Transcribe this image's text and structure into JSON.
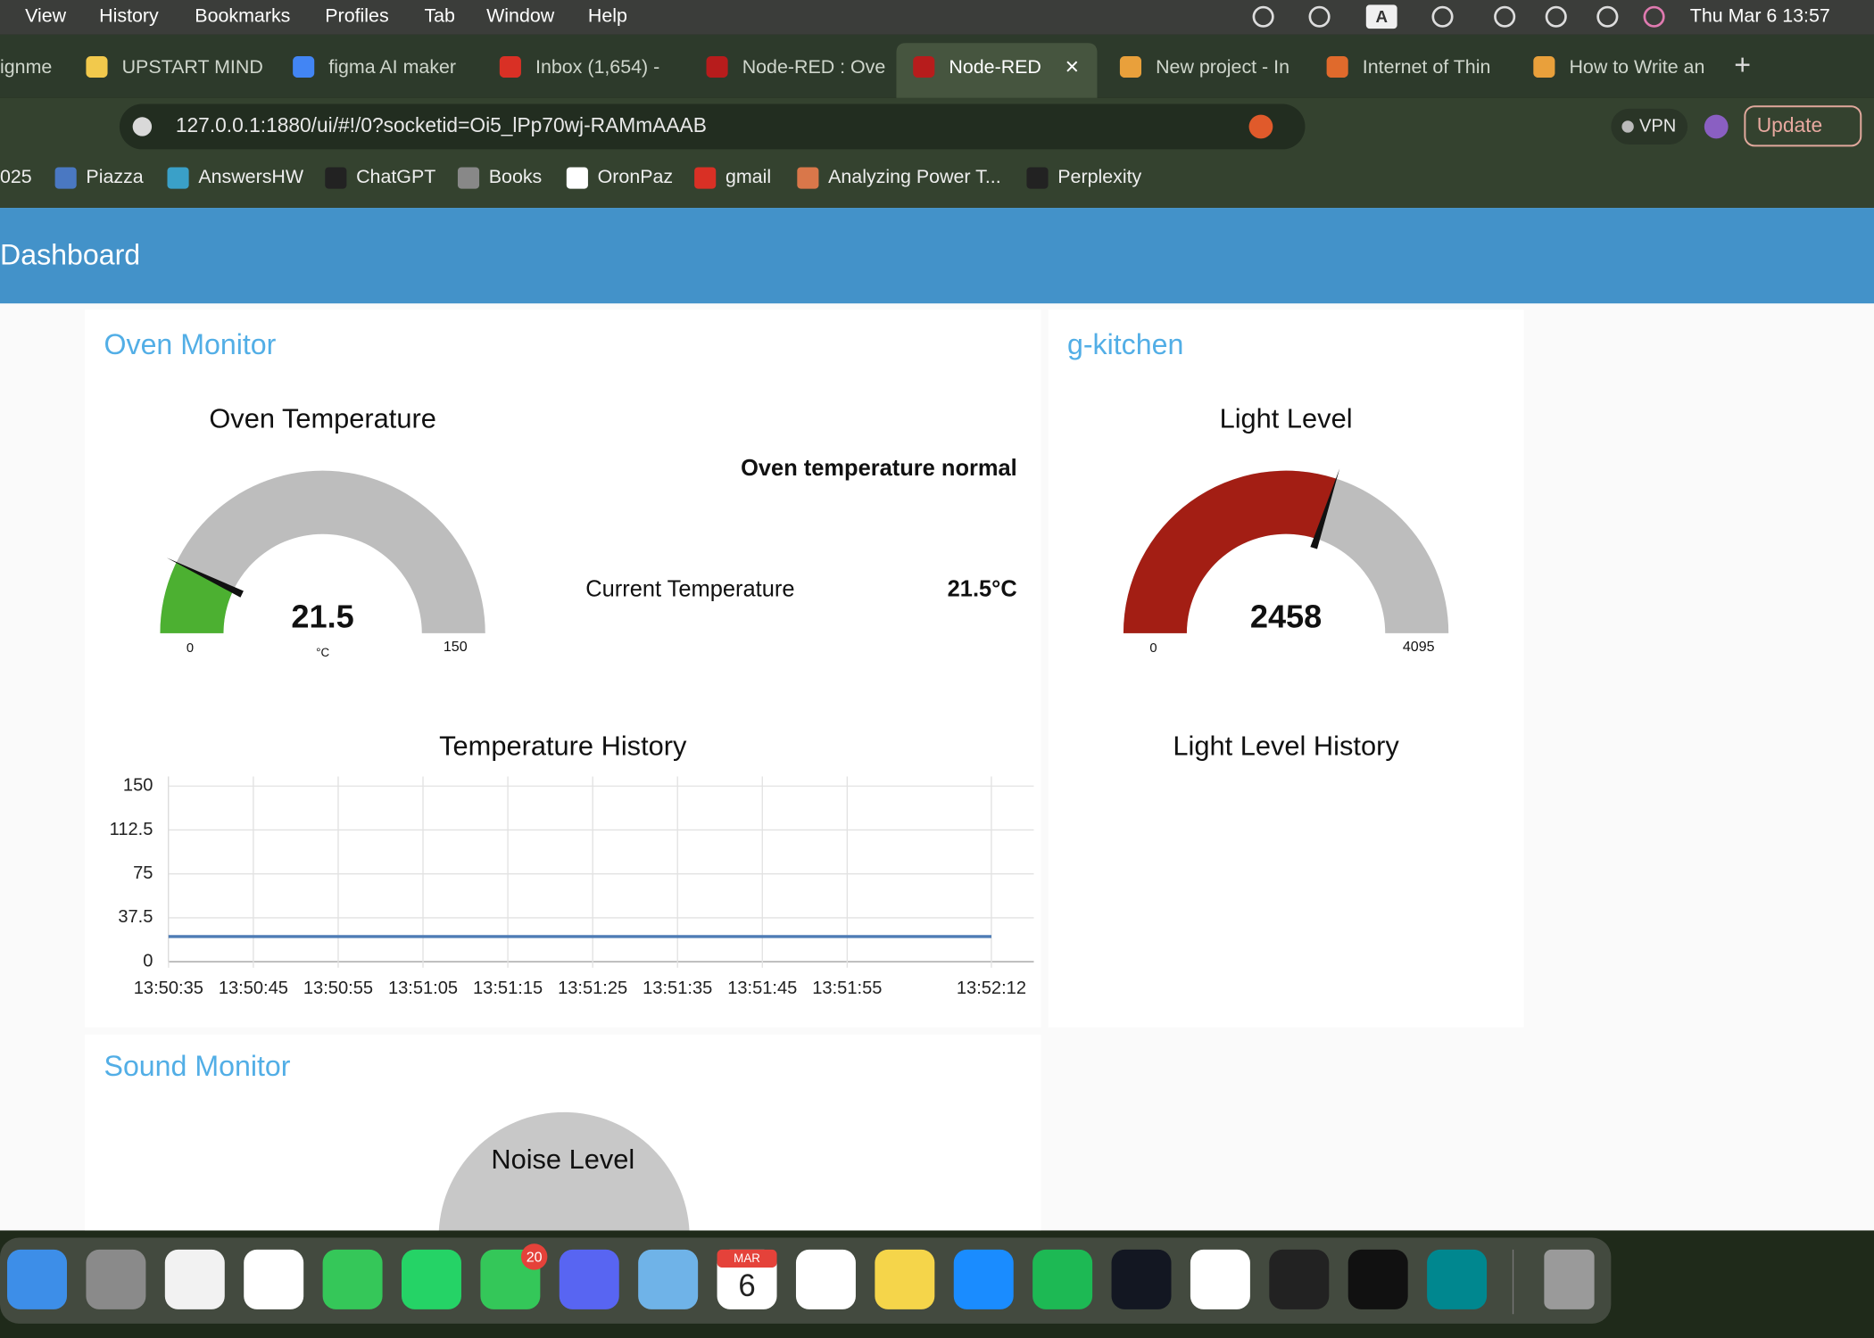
{
  "menu_bar": {
    "items": [
      "View",
      "History",
      "Bookmarks",
      "Profiles",
      "Tab",
      "Window",
      "Help"
    ],
    "input_source": "A",
    "datetime": "Thu Mar 6  13:57"
  },
  "tabs": [
    "ignme",
    "UPSTART MIND",
    "figma AI maker",
    "Inbox (1,654) - ",
    "Node-RED : Ove",
    "Node-RED",
    "New project - In",
    "Internet of Thin",
    "How to Write an"
  ],
  "active_tab": 5,
  "address_bar": {
    "url": "127.0.0.1:1880/ui/#!/0?socketid=Oi5_lPp70wj-RAMmAAAB",
    "vpn": "VPN",
    "update": "Update"
  },
  "bookmarks": [
    "025",
    "Piazza",
    "AnswersHW",
    "ChatGPT",
    "Books",
    "OronPaz",
    "gmail",
    "Analyzing Power T...",
    "Perplexity"
  ],
  "dashboard": {
    "title": "Dashboard",
    "oven_monitor": {
      "title": "Oven Monitor",
      "gauge": {
        "title": "Oven Temperature",
        "value": 21.5,
        "min": 0,
        "max": 150,
        "unit": "°C",
        "color": "#4cb031"
      },
      "status": "Oven temperature normal",
      "current_label": "Current Temperature",
      "current_value": "21.5°C"
    },
    "g_kitchen": {
      "title": "g-kitchen",
      "gauge": {
        "title": "Light Level",
        "value": 2458,
        "min": 0,
        "max": 4095,
        "color": "#a31e14"
      },
      "history_title": "Light Level History"
    },
    "sound_monitor": {
      "title": "Sound Monitor",
      "gauge_title": "Noise Level"
    }
  },
  "chart_data": {
    "type": "line",
    "title": "Temperature History",
    "xlim": [
      "13:50:35",
      "13:52:17"
    ],
    "xticks": [
      "13:50:35",
      "13:50:45",
      "13:50:55",
      "13:51:05",
      "13:51:15",
      "13:51:25",
      "13:51:35",
      "13:51:45",
      "13:51:55",
      "13:52:12"
    ],
    "ylim": [
      0,
      150
    ],
    "yticks": [
      0,
      37.5,
      75,
      112.5,
      150
    ],
    "grid": true,
    "series": [
      {
        "color": "#4e7cb5",
        "x": [
          "13:50:35",
          "13:52:12"
        ],
        "values": [
          21.5,
          21.5
        ]
      }
    ]
  },
  "dock": {
    "messages_badge": "20",
    "calendar_month": "MAR",
    "calendar_day": "6"
  }
}
